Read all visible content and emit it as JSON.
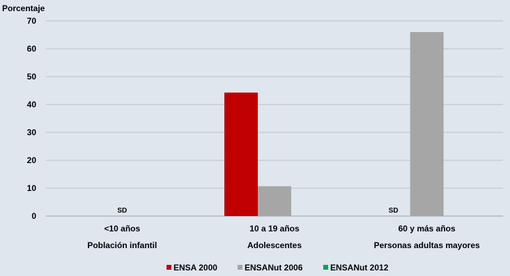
{
  "chart_data": {
    "type": "bar",
    "ylabel": "Porcentaje",
    "ylim": [
      0,
      70
    ],
    "yticks": [
      "0",
      "10",
      "20",
      "30",
      "40",
      "50",
      "60",
      "70"
    ],
    "grid": true,
    "legend_position": "bottom",
    "categories": [
      {
        "line1": "<10 años",
        "line2": "Población infantil"
      },
      {
        "line1": "10 a 19 años",
        "line2": "Adolescentes"
      },
      {
        "line1": "60 y más años",
        "line2": "Personas adultas mayores"
      }
    ],
    "series": [
      {
        "name": "ENSA 2000",
        "color": "#c00000",
        "values": [
          null,
          44.3,
          null
        ]
      },
      {
        "name": "ENSANut 2006",
        "color": "#a6a6a6",
        "values": [
          null,
          10.7,
          66.0
        ]
      },
      {
        "name": "ENSANut 2012",
        "color": "#00a651",
        "values": [
          null,
          null,
          null
        ]
      }
    ],
    "annotations": [
      {
        "text": "SD",
        "category_index": 0,
        "series_index": 1
      },
      {
        "text": "SD",
        "category_index": 2,
        "series_index": 0
      }
    ]
  }
}
